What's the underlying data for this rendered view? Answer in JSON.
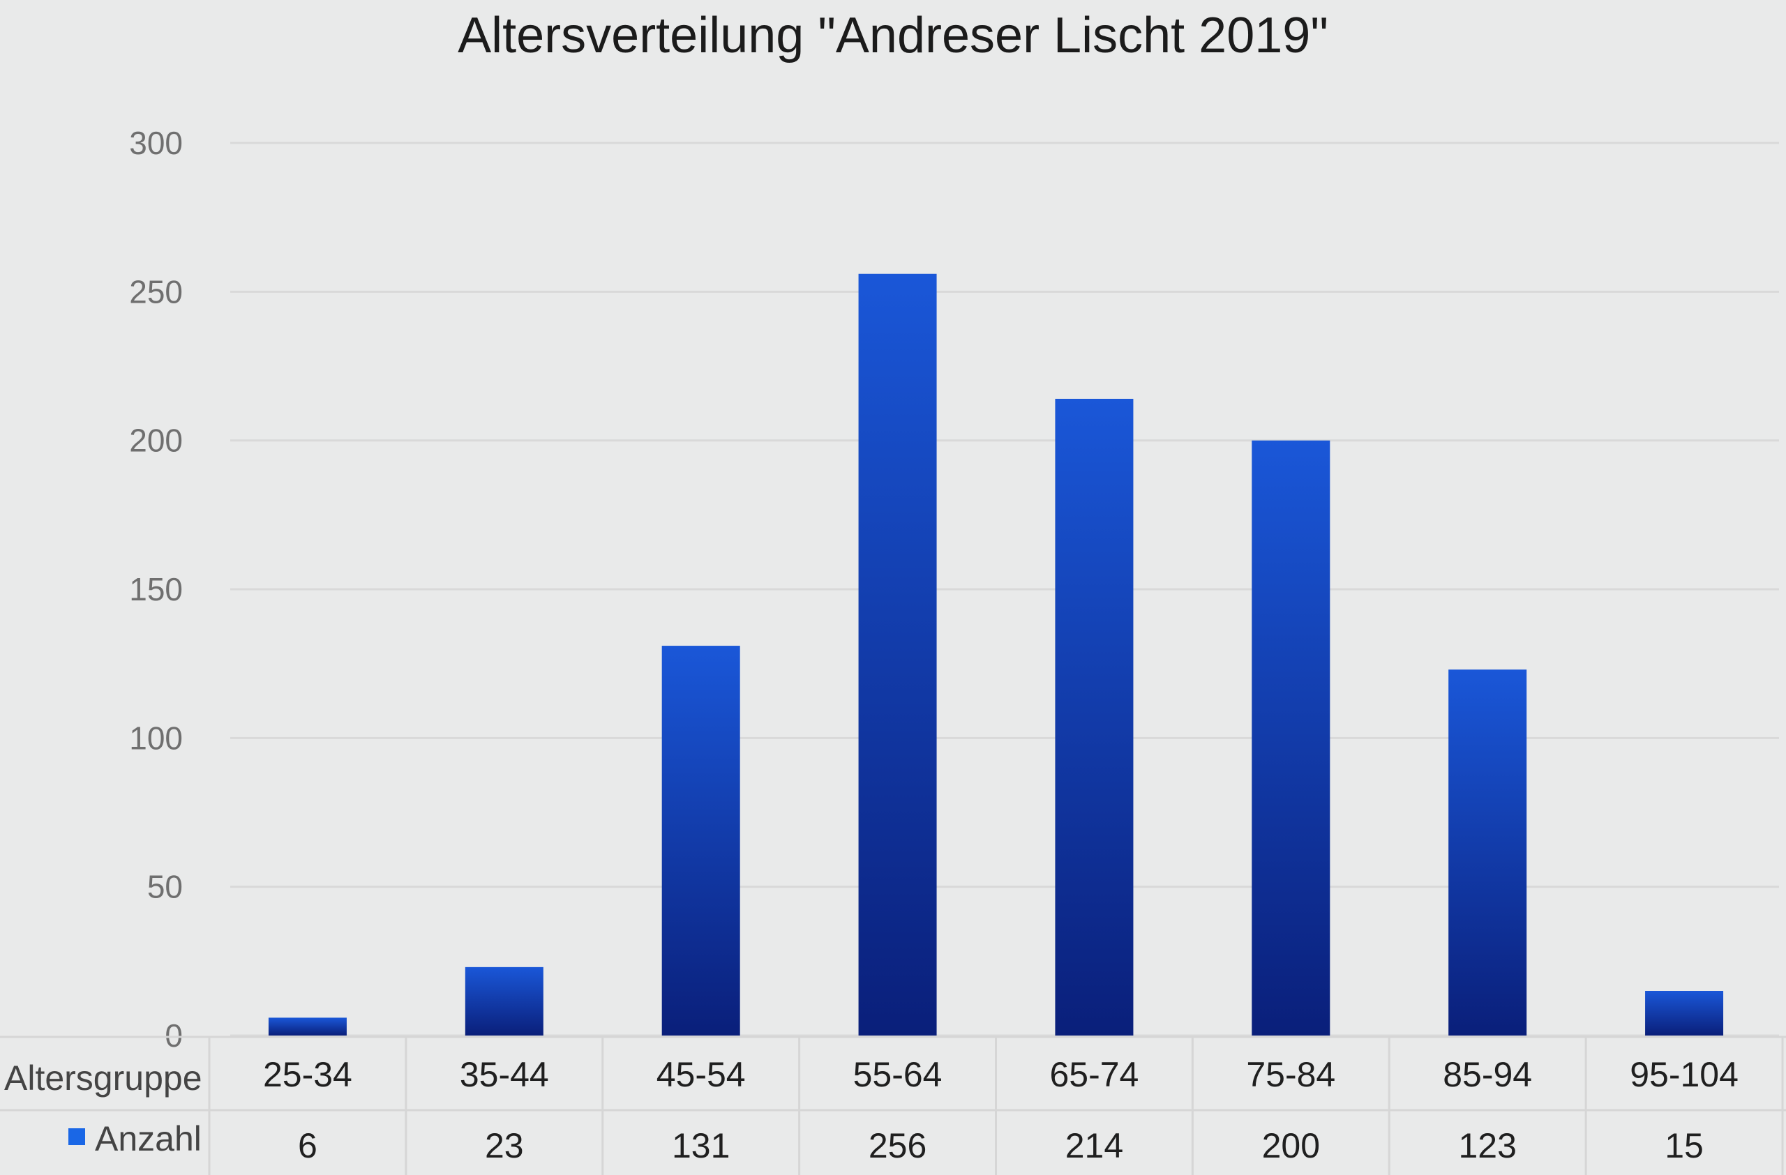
{
  "chart_data": {
    "type": "bar",
    "title": "Altersverteilung \"Andreser Lischt 2019\"",
    "xlabel": "Altersgruppe",
    "ylabel": "",
    "ylim": [
      0,
      300
    ],
    "yticks": [
      "0",
      "50",
      "100",
      "150",
      "200",
      "250",
      "300"
    ],
    "categories": [
      "25-34",
      "35-44",
      "45-54",
      "55-64",
      "65-74",
      "75-84",
      "85-94",
      "95-104"
    ],
    "series": [
      {
        "name": "Anzahl",
        "values": [
          6,
          23,
          131,
          256,
          214,
          200,
          123,
          15
        ]
      }
    ],
    "grid": true,
    "legend": "data-table",
    "colors": {
      "bar_top": "#1a57d8",
      "bar_bottom": "#0a1f7a",
      "legend_key": "#1a67e6",
      "grid": "#d9d9d9"
    }
  }
}
